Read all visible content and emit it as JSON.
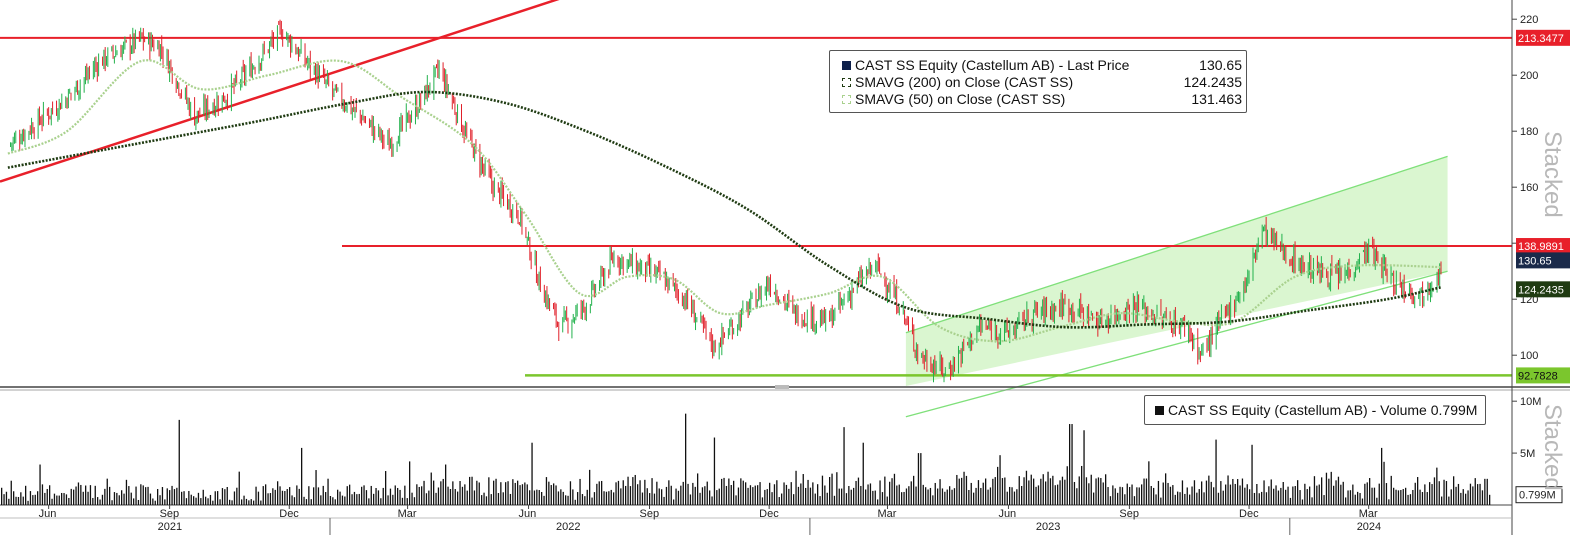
{
  "price_legend": {
    "rows": [
      {
        "label": "CAST SS Equity (Castellum AB) - Last Price",
        "value": "130.65"
      },
      {
        "label": "SMAVG (200)  on Close (CAST SS)",
        "value": "124.2435"
      },
      {
        "label": "SMAVG (50)  on Close (CAST SS)",
        "value": "131.463"
      }
    ]
  },
  "volume_legend": {
    "label": "CAST SS Equity (Castellum AB) - Volume 0.799M"
  },
  "stacked_label": "Stacked",
  "colors": {
    "up": "#22b14c",
    "down": "#e0202a",
    "sma50": "#a9d18e",
    "sma200": "#1f3b12",
    "resistance": "#e8202a",
    "support": "#7bc62d",
    "channel_fill": "#d4f5c8",
    "channel_line": "#7fe07a"
  },
  "chart_data": [
    {
      "type": "line",
      "panel": "price",
      "series": [
        {
          "name": "CAST SS Equity (Castellum AB) - Last Price",
          "x": [
            "2021-05-01",
            "2021-05-20",
            "2021-06-15",
            "2021-07-10",
            "2021-08-10",
            "2021-08-25",
            "2021-09-20",
            "2021-10-15",
            "2021-11-10",
            "2021-11-25",
            "2021-12-10",
            "2022-01-05",
            "2022-01-25",
            "2022-02-15",
            "2022-03-10",
            "2022-03-25",
            "2022-04-15",
            "2022-05-05",
            "2022-05-25",
            "2022-06-10",
            "2022-06-25",
            "2022-07-15",
            "2022-08-05",
            "2022-08-20",
            "2022-09-10",
            "2022-09-28",
            "2022-10-20",
            "2022-11-10",
            "2022-12-01",
            "2022-12-20",
            "2023-01-15",
            "2023-02-05",
            "2023-02-20",
            "2023-03-10",
            "2023-03-25",
            "2023-04-15",
            "2023-05-10",
            "2023-06-01",
            "2023-06-20",
            "2023-07-15",
            "2023-08-10",
            "2023-09-05",
            "2023-09-25",
            "2023-10-15",
            "2023-10-25",
            "2023-11-10",
            "2023-12-01",
            "2023-12-10",
            "2024-01-01",
            "2024-01-20",
            "2024-02-10",
            "2024-03-01",
            "2024-03-20",
            "2024-04-10",
            "2024-04-25"
          ],
          "values": [
            175,
            182,
            192,
            205,
            213,
            210,
            185,
            193,
            207,
            216,
            207,
            193,
            185,
            175,
            190,
            202,
            178,
            160,
            150,
            125,
            110,
            118,
            135,
            132,
            128,
            120,
            103,
            114,
            126,
            115,
            112,
            125,
            132,
            118,
            100,
            94,
            110,
            108,
            115,
            118,
            112,
            118,
            113,
            110,
            100,
            112,
            128,
            145,
            135,
            130,
            128,
            138,
            126,
            122,
            130.65
          ]
        },
        {
          "name": "SMAVG (200)  on Close (CAST SS)",
          "x": [
            "2021-05-01",
            "2021-08-01",
            "2021-11-01",
            "2022-01-15",
            "2022-03-15",
            "2022-05-15",
            "2022-07-15",
            "2022-09-15",
            "2022-11-15",
            "2023-01-15",
            "2023-03-15",
            "2023-05-15",
            "2023-07-15",
            "2023-09-15",
            "2023-11-15",
            "2024-01-15",
            "2024-03-15",
            "2024-04-25"
          ],
          "values": [
            167,
            175,
            183,
            190,
            194,
            190,
            180,
            167,
            152,
            132,
            117,
            113,
            110,
            111,
            112,
            116,
            120,
            124.2435
          ]
        },
        {
          "name": "SMAVG (50)  on Close (CAST SS)",
          "x": [
            "2021-05-01",
            "2021-06-15",
            "2021-08-10",
            "2021-09-25",
            "2021-11-15",
            "2022-01-10",
            "2022-02-25",
            "2022-04-20",
            "2022-05-30",
            "2022-07-10",
            "2022-08-15",
            "2022-09-20",
            "2022-10-25",
            "2022-12-01",
            "2023-01-15",
            "2023-02-25",
            "2023-04-10",
            "2023-05-25",
            "2023-07-10",
            "2023-08-25",
            "2023-10-10",
            "2023-11-20",
            "2024-01-05",
            "2024-02-20",
            "2024-04-25"
          ],
          "values": [
            172,
            180,
            205,
            195,
            200,
            205,
            192,
            175,
            150,
            122,
            128,
            127,
            115,
            118,
            122,
            128,
            110,
            105,
            110,
            115,
            112,
            112,
            128,
            132,
            131.463
          ]
        }
      ],
      "reference_lines": [
        {
          "value": 213.3477,
          "label": "213.3477",
          "style": "horizontal resistance"
        },
        {
          "value": 138.9891,
          "label": "138.9891",
          "style": "horizontal resistance"
        },
        {
          "value": 92.7828,
          "label": "92.7828",
          "style": "horizontal support"
        }
      ],
      "trendline": {
        "from": {
          "x": "2021-04-25",
          "y": 162
        },
        "to": {
          "x": "2022-07-25",
          "y": 232
        }
      },
      "channel": {
        "upper": {
          "from": {
            "x": "2023-03-15",
            "y": 108
          },
          "to": {
            "x": "2024-04-30",
            "y": 171
          }
        },
        "lower": {
          "from": {
            "x": "2023-03-15",
            "y": 78
          },
          "to": {
            "x": "2024-04-30",
            "y": 130
          }
        }
      },
      "price_tags": [
        {
          "value": 130.65,
          "label": "130.65",
          "kind": "last"
        },
        {
          "value": 124.2435,
          "label": "124.2435",
          "kind": "sma200"
        }
      ],
      "y_ticks": [
        100,
        120,
        140,
        160,
        180,
        200,
        220
      ],
      "ylim": [
        89,
        224
      ],
      "x_ticks": [
        {
          "date": "2021-06-01",
          "label": "Jun"
        },
        {
          "date": "2021-09-01",
          "label": "Sep"
        },
        {
          "date": "2021-12-01",
          "label": "Dec"
        },
        {
          "date": "2022-03-01",
          "label": "Mar"
        },
        {
          "date": "2022-06-01",
          "label": "Jun"
        },
        {
          "date": "2022-09-01",
          "label": "Sep"
        },
        {
          "date": "2022-12-01",
          "label": "Dec"
        },
        {
          "date": "2023-03-01",
          "label": "Mar"
        },
        {
          "date": "2023-06-01",
          "label": "Jun"
        },
        {
          "date": "2023-09-01",
          "label": "Sep"
        },
        {
          "date": "2023-12-01",
          "label": "Dec"
        },
        {
          "date": "2024-03-01",
          "label": "Mar"
        }
      ],
      "year_labels": [
        {
          "date": "2021-09-01",
          "label": "2021"
        },
        {
          "date": "2022-07-01",
          "label": "2022"
        },
        {
          "date": "2023-07-01",
          "label": "2023"
        },
        {
          "date": "2024-03-01",
          "label": "2024"
        }
      ],
      "year_dividers": [
        "2022-01-01",
        "2023-01-01",
        "2024-01-01"
      ],
      "xlim": [
        "2021-04-25",
        "2024-06-18"
      ]
    },
    {
      "type": "bar",
      "panel": "volume",
      "unit": "M",
      "y_ticks": [
        {
          "value": 5,
          "label": "5M"
        },
        {
          "value": 10,
          "label": "10M"
        }
      ],
      "ylim": [
        0,
        10.5
      ],
      "last_value": {
        "value": 0.799,
        "label": "0.799M"
      },
      "x": [
        "2021-09-08",
        "2021-12-10",
        "2022-03-02",
        "2022-06-03",
        "2022-09-28",
        "2022-10-20",
        "2023-01-26",
        "2023-02-10",
        "2023-03-25",
        "2023-05-25",
        "2023-07-18",
        "2023-07-28",
        "2023-11-05",
        "2023-12-03",
        "2024-03-10",
        "2024-04-22"
      ],
      "spikes": [
        8.2,
        5.5,
        4.2,
        6.0,
        8.8,
        6.5,
        7.5,
        6.0,
        5.0,
        4.8,
        7.8,
        7.2,
        6.3,
        5.8,
        5.5,
        3.6
      ]
    }
  ]
}
